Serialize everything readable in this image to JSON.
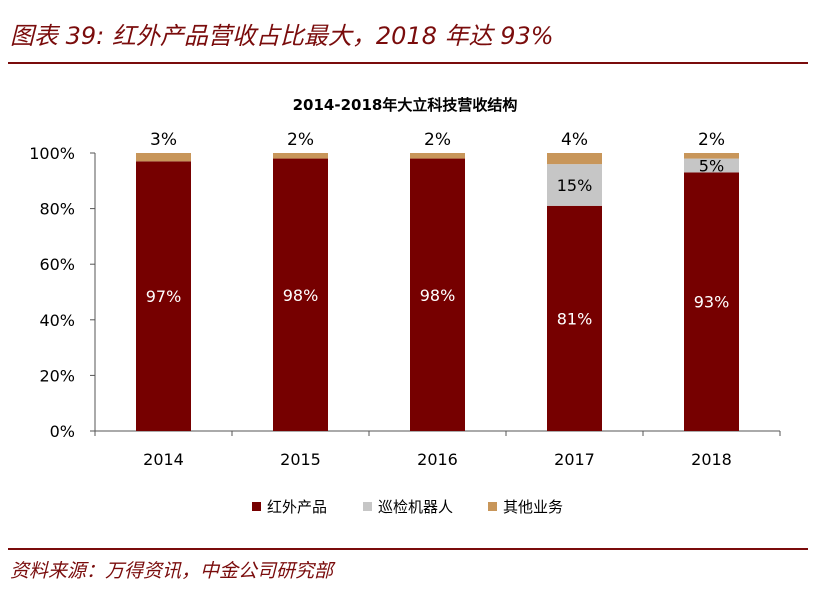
{
  "figure_title": "图表 39:  红外产品营收占比最大，2018 年达 93%",
  "source": "资料来源：万得资讯，中金公司研究部",
  "colors": {
    "accent": "#7a0c0c",
    "series": [
      "#760000",
      "#c6c6c6",
      "#c8965a"
    ]
  },
  "chart_data": {
    "type": "bar",
    "stacked": true,
    "title": "2014-2018年大立科技营收结构",
    "categories": [
      "2014",
      "2015",
      "2016",
      "2017",
      "2018"
    ],
    "ylim": [
      0,
      100
    ],
    "yticks": [
      "0%",
      "20%",
      "40%",
      "60%",
      "80%",
      "100%"
    ],
    "legend_position": "bottom",
    "series": [
      {
        "name": "红外产品",
        "values": [
          97,
          98,
          98,
          81,
          93
        ],
        "labels": [
          "97%",
          "98%",
          "98%",
          "81%",
          "93%"
        ]
      },
      {
        "name": "巡检机器人",
        "values": [
          0,
          0,
          0,
          15,
          5
        ],
        "labels": [
          "",
          "",
          "",
          "15%",
          "5%"
        ]
      },
      {
        "name": "其他业务",
        "values": [
          3,
          2,
          2,
          4,
          2
        ],
        "labels": [
          "3%",
          "2%",
          "2%",
          "4%",
          "2%"
        ]
      }
    ]
  }
}
